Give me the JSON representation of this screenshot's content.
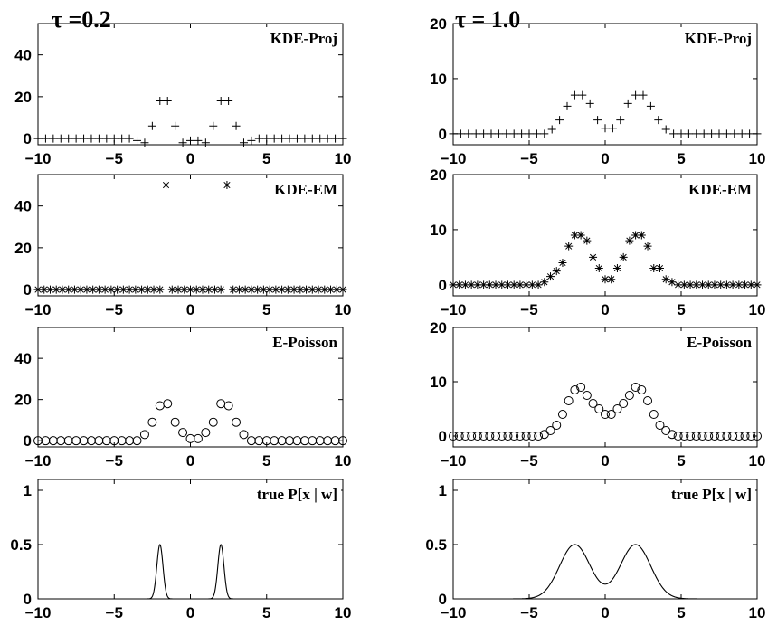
{
  "figure": {
    "columns": [
      {
        "title": "τ =0.2"
      },
      {
        "title": "τ = 1.0"
      }
    ]
  },
  "chart_data": [
    {
      "type": "scatter",
      "marker": "plus",
      "title": "KDE-Proj",
      "column": "τ =0.2",
      "xlim": [
        -10,
        10
      ],
      "ylim": [
        -3,
        55
      ],
      "xticks": [
        "−10",
        "−5",
        "0",
        "5",
        "10"
      ],
      "yticks": [
        "0",
        "20",
        "40"
      ],
      "x": [
        -10,
        -9.5,
        -9,
        -8.5,
        -8,
        -7.5,
        -7,
        -6.5,
        -6,
        -5.5,
        -5,
        -4.5,
        -4,
        -3.5,
        -3,
        -2.5,
        -2,
        -1.5,
        -1,
        -0.5,
        0,
        0.5,
        1,
        1.5,
        2,
        2.5,
        3,
        3.5,
        4,
        4.5,
        5,
        5.5,
        6,
        6.5,
        7,
        7.5,
        8,
        8.5,
        9,
        9.5,
        10
      ],
      "y": [
        0,
        0,
        0,
        0,
        0,
        0,
        0,
        0,
        0,
        0,
        0,
        0,
        0,
        -1,
        -2,
        6,
        18,
        18,
        6,
        -2,
        -1,
        -1,
        -2,
        6,
        18,
        18,
        6,
        -2,
        -1,
        0,
        0,
        0,
        0,
        0,
        0,
        0,
        0,
        0,
        0,
        0,
        0
      ]
    },
    {
      "type": "scatter",
      "marker": "plus",
      "title": "KDE-Proj",
      "column": "τ = 1.0",
      "xlim": [
        -10,
        10
      ],
      "ylim": [
        -2,
        20
      ],
      "xticks": [
        "−10",
        "−5",
        "0",
        "5",
        "10"
      ],
      "yticks": [
        "0",
        "10",
        "20"
      ],
      "x": [
        -10,
        -9.5,
        -9,
        -8.5,
        -8,
        -7.5,
        -7,
        -6.5,
        -6,
        -5.5,
        -5,
        -4.5,
        -4,
        -3.5,
        -3,
        -2.5,
        -2,
        -1.5,
        -1,
        -0.5,
        0,
        0.5,
        1,
        1.5,
        2,
        2.5,
        3,
        3.5,
        4,
        4.5,
        5,
        5.5,
        6,
        6.5,
        7,
        7.5,
        8,
        8.5,
        9,
        9.5,
        10
      ],
      "y": [
        0,
        0,
        0,
        0,
        0,
        0,
        0,
        0,
        0,
        0,
        0,
        0,
        0,
        0.8,
        2.5,
        5,
        7,
        7,
        5.5,
        2.5,
        1,
        1,
        2.5,
        5.5,
        7,
        7,
        5,
        2.5,
        0.8,
        0,
        0,
        0,
        0,
        0,
        0,
        0,
        0,
        0,
        0,
        0,
        0
      ]
    },
    {
      "type": "scatter",
      "marker": "star",
      "title": "KDE-EM",
      "column": "τ =0.2",
      "xlim": [
        -10,
        10
      ],
      "ylim": [
        -3,
        55
      ],
      "xticks": [
        "−10",
        "−5",
        "0",
        "5",
        "10"
      ],
      "yticks": [
        "0",
        "20",
        "40"
      ],
      "x": [
        -10,
        -9.6,
        -9.2,
        -8.8,
        -8.4,
        -8,
        -7.6,
        -7.2,
        -6.8,
        -6.4,
        -6,
        -5.6,
        -5.2,
        -4.8,
        -4.4,
        -4,
        -3.6,
        -3.2,
        -2.8,
        -2.4,
        -2,
        -1.6,
        -1.2,
        -0.8,
        -0.4,
        0,
        0.4,
        0.8,
        1.2,
        1.6,
        2,
        2.4,
        2.8,
        3.2,
        3.6,
        4,
        4.4,
        4.8,
        5.2,
        5.6,
        6,
        6.4,
        6.8,
        7.2,
        7.6,
        8,
        8.4,
        8.8,
        9.2,
        9.6,
        10
      ],
      "y": [
        0,
        0,
        0,
        0,
        0,
        0,
        0,
        0,
        0,
        0,
        0,
        0,
        0,
        0,
        0,
        0,
        0,
        0,
        0,
        0,
        0,
        50,
        0,
        0,
        0,
        0,
        0,
        0,
        0,
        0,
        0,
        50,
        0,
        0,
        0,
        0,
        0,
        0,
        0,
        0,
        0,
        0,
        0,
        0,
        0,
        0,
        0,
        0,
        0,
        0,
        0
      ]
    },
    {
      "type": "scatter",
      "marker": "star",
      "title": "KDE-EM",
      "column": "τ = 1.0",
      "xlim": [
        -10,
        10
      ],
      "ylim": [
        -2,
        20
      ],
      "xticks": [
        "−10",
        "−5",
        "0",
        "5",
        "10"
      ],
      "yticks": [
        "0",
        "10",
        "20"
      ],
      "x": [
        -10,
        -9.6,
        -9.2,
        -8.8,
        -8.4,
        -8,
        -7.6,
        -7.2,
        -6.8,
        -6.4,
        -6,
        -5.6,
        -5.2,
        -4.8,
        -4.4,
        -4,
        -3.6,
        -3.2,
        -2.8,
        -2.4,
        -2,
        -1.6,
        -1.2,
        -0.8,
        -0.4,
        0,
        0.4,
        0.8,
        1.2,
        1.6,
        2,
        2.4,
        2.8,
        3.2,
        3.6,
        4,
        4.4,
        4.8,
        5.2,
        5.6,
        6,
        6.4,
        6.8,
        7.2,
        7.6,
        8,
        8.4,
        8.8,
        9.2,
        9.6,
        10
      ],
      "y": [
        0,
        0,
        0,
        0,
        0,
        0,
        0,
        0,
        0,
        0,
        0,
        0,
        0,
        0,
        0,
        0.5,
        1.5,
        2.5,
        4,
        7,
        9,
        9,
        8,
        5,
        3,
        1,
        1,
        3,
        5,
        8,
        9,
        9,
        7,
        3,
        3,
        1,
        0.5,
        0,
        0,
        0,
        0,
        0,
        0,
        0,
        0,
        0,
        0,
        0,
        0,
        0,
        0
      ]
    },
    {
      "type": "scatter",
      "marker": "circle",
      "title": "E-Poisson",
      "column": "τ =0.2",
      "xlim": [
        -10,
        10
      ],
      "ylim": [
        -3,
        55
      ],
      "xticks": [
        "−10",
        "−5",
        "0",
        "5",
        "10"
      ],
      "yticks": [
        "0",
        "20",
        "40"
      ],
      "x": [
        -10,
        -9.5,
        -9,
        -8.5,
        -8,
        -7.5,
        -7,
        -6.5,
        -6,
        -5.5,
        -5,
        -4.5,
        -4,
        -3.5,
        -3,
        -2.5,
        -2,
        -1.5,
        -1,
        -0.5,
        0,
        0.5,
        1,
        1.5,
        2,
        2.5,
        3,
        3.5,
        4,
        4.5,
        5,
        5.5,
        6,
        6.5,
        7,
        7.5,
        8,
        8.5,
        9,
        9.5,
        10
      ],
      "y": [
        0,
        0,
        0,
        0,
        0,
        0,
        0,
        0,
        0,
        0,
        0,
        0,
        0,
        0,
        3,
        9,
        17,
        18,
        9,
        4,
        1,
        1,
        4,
        9,
        18,
        17,
        9,
        3,
        0,
        0,
        0,
        0,
        0,
        0,
        0,
        0,
        0,
        0,
        0,
        0,
        0
      ]
    },
    {
      "type": "scatter",
      "marker": "circle",
      "title": "E-Poisson",
      "column": "τ = 1.0",
      "xlim": [
        -10,
        10
      ],
      "ylim": [
        -2,
        20
      ],
      "xticks": [
        "−10",
        "−5",
        "0",
        "5",
        "10"
      ],
      "yticks": [
        "0",
        "10",
        "20"
      ],
      "x": [
        -10,
        -9.6,
        -9.2,
        -8.8,
        -8.4,
        -8,
        -7.6,
        -7.2,
        -6.8,
        -6.4,
        -6,
        -5.6,
        -5.2,
        -4.8,
        -4.4,
        -4,
        -3.6,
        -3.2,
        -2.8,
        -2.4,
        -2,
        -1.6,
        -1.2,
        -0.8,
        -0.4,
        0,
        0.4,
        0.8,
        1.2,
        1.6,
        2,
        2.4,
        2.8,
        3.2,
        3.6,
        4,
        4.4,
        4.8,
        5.2,
        5.6,
        6,
        6.4,
        6.8,
        7.2,
        7.6,
        8,
        8.4,
        8.8,
        9.2,
        9.6,
        10
      ],
      "y": [
        0,
        0,
        0,
        0,
        0,
        0,
        0,
        0,
        0,
        0,
        0,
        0,
        0,
        0,
        0,
        0.3,
        1,
        2,
        4,
        6.5,
        8.5,
        9,
        7.5,
        6,
        5,
        4,
        4,
        5,
        6,
        7.5,
        9,
        8.5,
        6.5,
        4,
        2,
        1,
        0.3,
        0,
        0,
        0,
        0,
        0,
        0,
        0,
        0,
        0,
        0,
        0,
        0,
        0,
        0
      ]
    },
    {
      "type": "line",
      "title": "true P[x | w]",
      "column": "τ =0.2",
      "xlim": [
        -10,
        10
      ],
      "ylim": [
        0,
        1.1
      ],
      "xticks": [
        "−10",
        "−5",
        "0",
        "5",
        "10"
      ],
      "yticks": [
        "0",
        "0.5",
        "1"
      ],
      "mixture": {
        "weights": [
          0.5,
          0.5
        ],
        "means": [
          -2,
          2
        ],
        "peak": 0.5,
        "sigma": 0.2
      }
    },
    {
      "type": "line",
      "title": "true P[x | w]",
      "column": "τ = 1.0",
      "xlim": [
        -10,
        10
      ],
      "ylim": [
        0,
        1.1
      ],
      "xticks": [
        "−10",
        "−5",
        "0",
        "5",
        "10"
      ],
      "yticks": [
        "0",
        "0.5",
        "1"
      ],
      "mixture": {
        "weights": [
          0.5,
          0.5
        ],
        "means": [
          -2,
          2
        ],
        "peak": 0.5,
        "sigma": 1.0
      }
    }
  ]
}
